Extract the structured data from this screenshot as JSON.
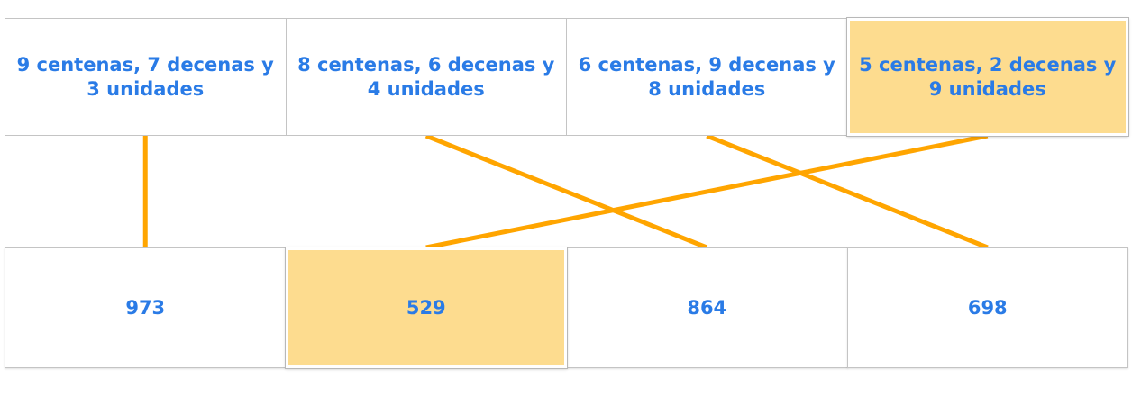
{
  "colors": {
    "text": "#2a7be6",
    "selected_bg": "#fddc8f",
    "connector": "#ffa500",
    "border": "#c4c4c4"
  },
  "top_items": [
    {
      "label": "9 centenas, 7 decenas y 3 unidades",
      "selected": false
    },
    {
      "label": "8 centenas, 6 decenas y 4 unidades",
      "selected": false
    },
    {
      "label": "6 centenas, 9 decenas y 8 unidades",
      "selected": false
    },
    {
      "label": "5 centenas, 2 decenas y 9 unidades",
      "selected": true
    }
  ],
  "bottom_items": [
    {
      "label": "973",
      "selected": false
    },
    {
      "label": "529",
      "selected": true
    },
    {
      "label": "864",
      "selected": false
    },
    {
      "label": "698",
      "selected": false
    }
  ],
  "connections": [
    {
      "from": 0,
      "to": 0
    },
    {
      "from": 1,
      "to": 2
    },
    {
      "from": 2,
      "to": 3
    },
    {
      "from": 3,
      "to": 1
    }
  ]
}
